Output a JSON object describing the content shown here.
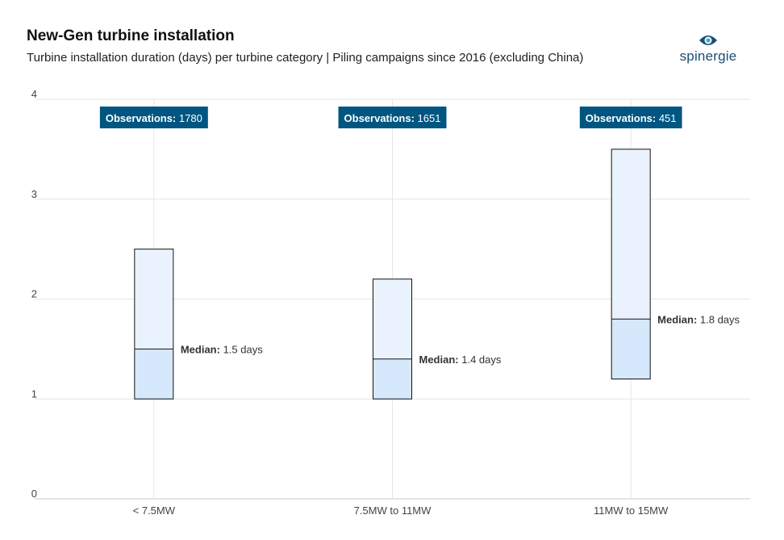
{
  "header": {
    "title": "New-Gen turbine installation",
    "subtitle": "Turbine installation duration (days) per turbine category | Piling campaigns since 2016 (excluding China)"
  },
  "logo": {
    "text": "spinergie",
    "icon": "eye-icon"
  },
  "colors": {
    "box_fill_upper": "#eaf3fd",
    "box_fill_lower": "#d6e8fb",
    "box_stroke": "#111111",
    "badge_bg": "#005680",
    "badge_text": "#ffffff",
    "grid": "#e6e6e6",
    "logo": "#1a4f74"
  },
  "chart_data": {
    "type": "box",
    "categories": [
      "< 7.5MW",
      "7.5MW to 11MW",
      "11MW to 15MW"
    ],
    "boxes": [
      {
        "low": 1.0,
        "median": 1.5,
        "high": 2.5,
        "observations": 1780
      },
      {
        "low": 1.0,
        "median": 1.4,
        "high": 2.2,
        "observations": 1651
      },
      {
        "low": 1.2,
        "median": 1.8,
        "high": 3.5,
        "observations": 451
      }
    ],
    "median_label": "Median:",
    "median_unit": "days",
    "observations_label": "Observations:",
    "yticks": [
      0,
      1,
      2,
      3,
      4
    ],
    "ylim": [
      0,
      4
    ],
    "grid": true
  }
}
